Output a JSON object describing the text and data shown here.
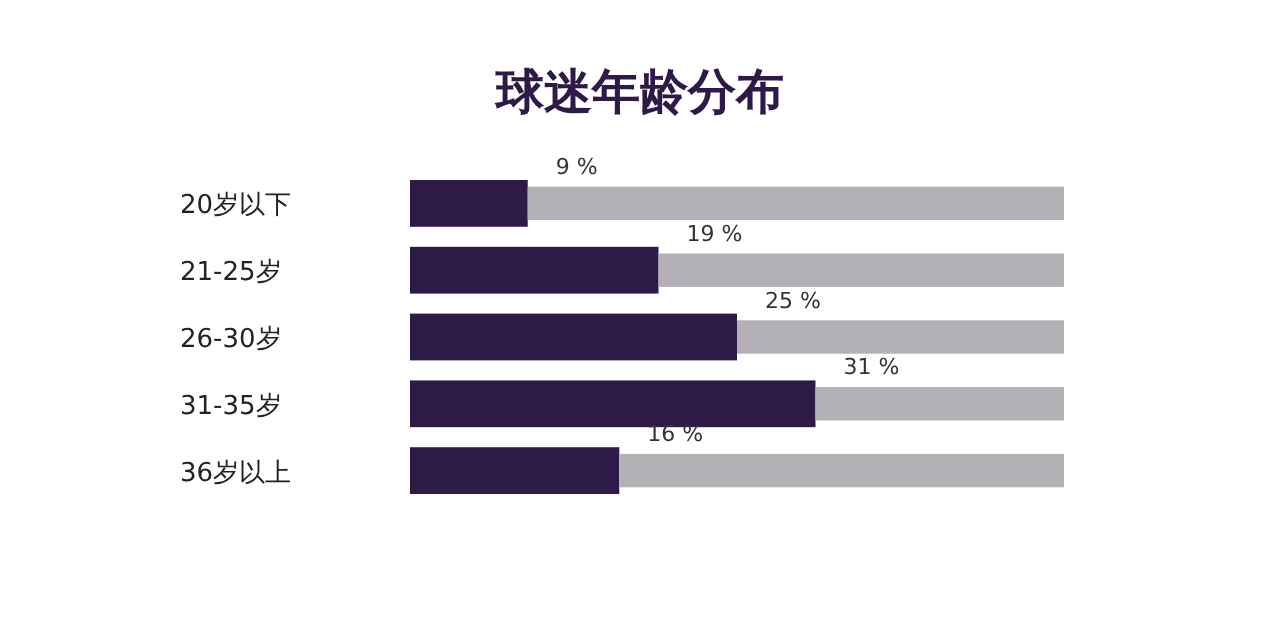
{
  "chart_data": {
    "type": "bar",
    "title": "球迷年龄分布",
    "orientation": "horizontal",
    "stacked": true,
    "categories": [
      "20岁以下",
      "21-25岁",
      "26-30岁",
      "31-35岁",
      "36岁以上"
    ],
    "xlim": [
      0,
      50
    ],
    "tick_labels": "y",
    "series": [
      {
        "color": "#2e1a47",
        "values": [
          9,
          19,
          25,
          31,
          16
        ],
        "value_labels": [
          "9 %",
          "19 %",
          "25 %",
          "31 %",
          "16 %"
        ]
      },
      {
        "color": "#b3b1b6",
        "values": [
          41,
          31,
          25,
          19,
          34
        ]
      }
    ]
  }
}
